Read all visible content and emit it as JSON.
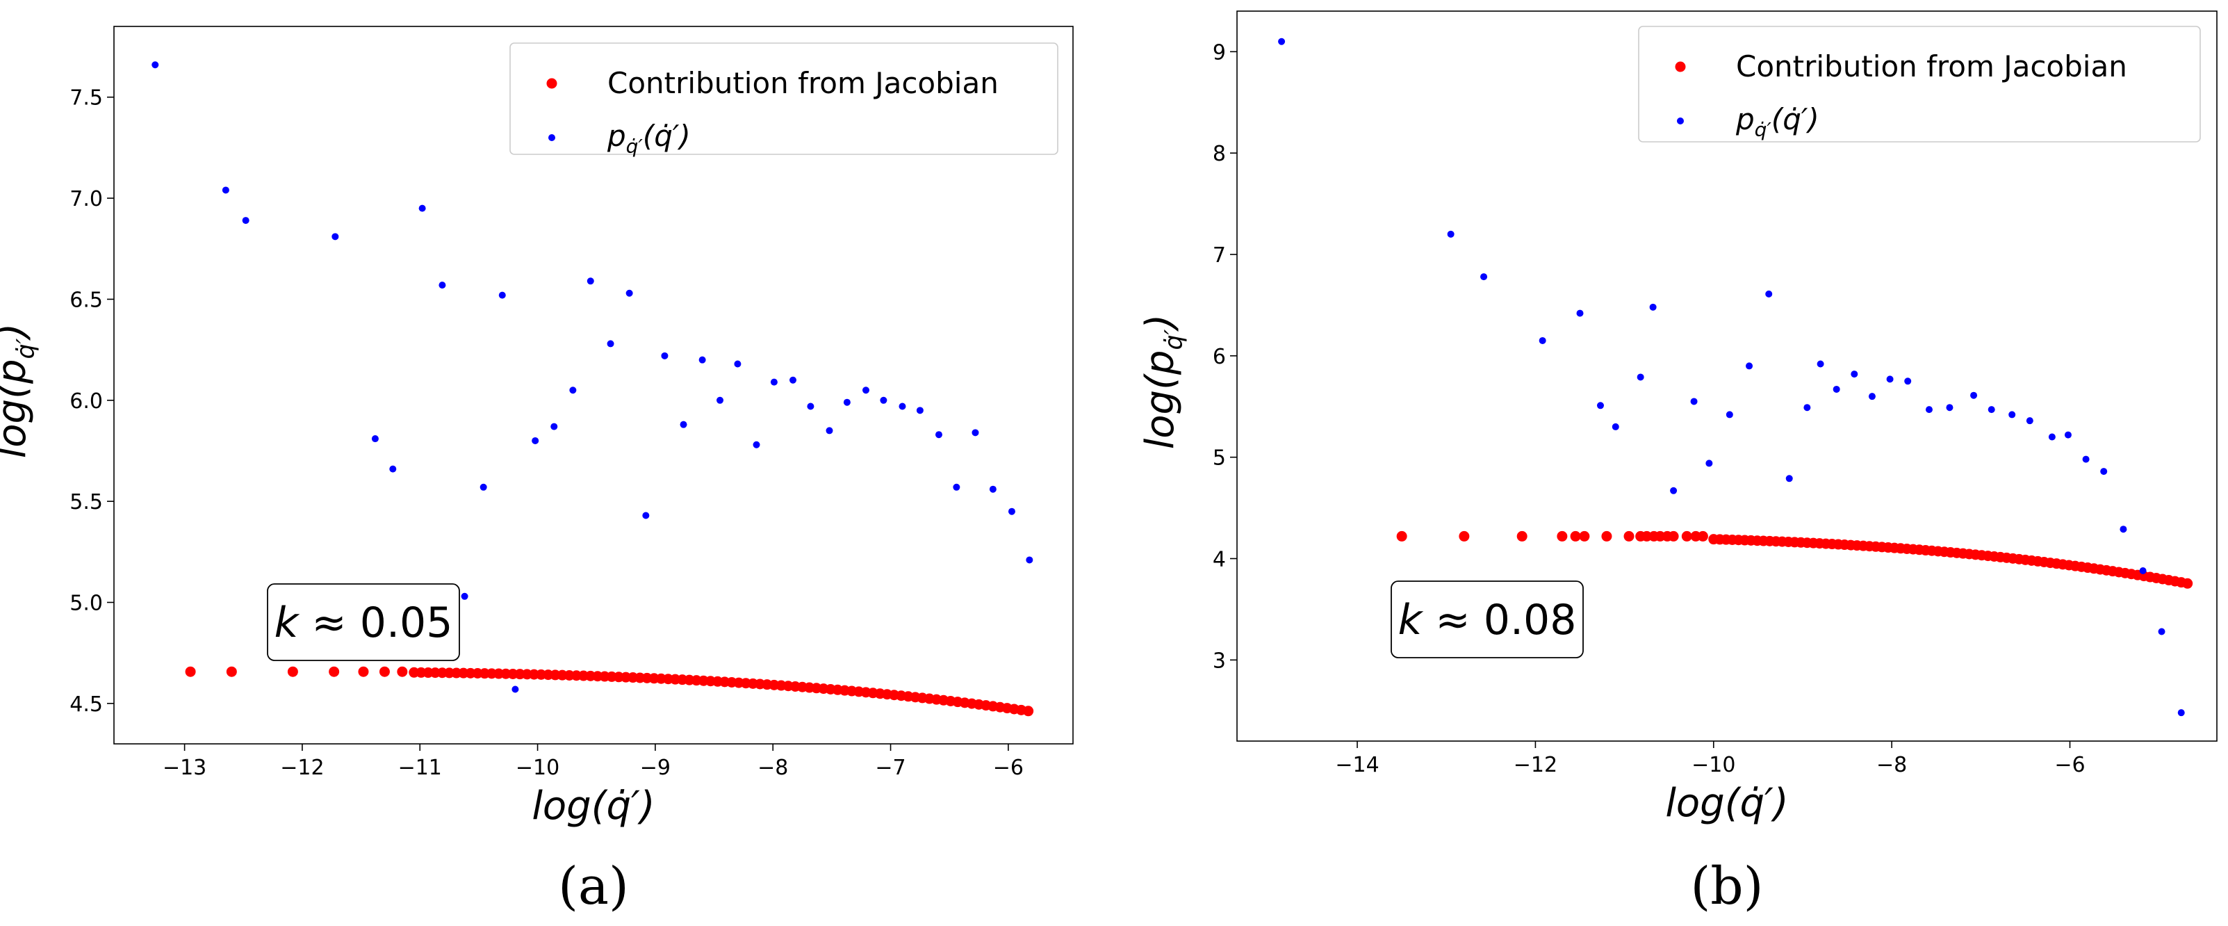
{
  "chart_data": [
    {
      "panel": "(a)",
      "type": "scatter",
      "xlabel": "log(q̇′)",
      "ylabel": "log(p_q̇′)",
      "xlim": [
        -13.6,
        -5.45
      ],
      "ylim": [
        4.3,
        7.85
      ],
      "xticks": [
        -13,
        -12,
        -11,
        -10,
        -9,
        -8,
        -7,
        -6
      ],
      "yticks": [
        4.5,
        5.0,
        5.5,
        6.0,
        6.5,
        7.0,
        7.5
      ],
      "annotation": "k ≈ 0.05",
      "legend": [
        "Contribution from Jacobian",
        "p_q̇′(q̇′)"
      ],
      "legend_loc": "upper right",
      "series": [
        {
          "name": "Contribution from Jacobian",
          "color": "#ff0000",
          "curve": {
            "a": 4.657,
            "x0": -12.95,
            "x_end": -5.8,
            "y_end": 4.46,
            "power": 3,
            "dense_from": -11.05,
            "dense_step": 0.06
          },
          "x": [
            -12.95,
            -12.6,
            -12.08,
            -11.73,
            -11.48,
            -11.3,
            -11.15
          ],
          "y": [
            4.657,
            4.657,
            4.657,
            4.657,
            4.657,
            4.657,
            4.657
          ]
        },
        {
          "name": "p_q̇′(q̇′)",
          "color": "#0000ff",
          "x": [
            -13.25,
            -12.65,
            -12.48,
            -11.72,
            -11.38,
            -11.23,
            -10.98,
            -10.81,
            -10.62,
            -10.46,
            -10.3,
            -10.19,
            -10.02,
            -9.86,
            -9.7,
            -9.55,
            -9.38,
            -9.22,
            -9.08,
            -8.92,
            -8.76,
            -8.6,
            -8.45,
            -8.3,
            -8.14,
            -7.99,
            -7.83,
            -7.68,
            -7.52,
            -7.37,
            -7.21,
            -7.06,
            -6.9,
            -6.75,
            -6.59,
            -6.44,
            -6.28,
            -6.13,
            -5.97,
            -5.82
          ],
          "y": [
            7.66,
            7.04,
            6.89,
            6.81,
            5.81,
            5.66,
            6.95,
            6.57,
            5.03,
            5.57,
            6.52,
            4.57,
            5.8,
            5.87,
            6.05,
            6.59,
            6.28,
            6.53,
            5.43,
            6.22,
            5.88,
            6.2,
            6.0,
            6.18,
            5.78,
            6.09,
            6.1,
            5.97,
            5.85,
            5.99,
            6.05,
            6.0,
            5.97,
            5.95,
            5.83,
            5.57,
            5.84,
            5.56,
            5.45,
            5.21
          ]
        }
      ]
    },
    {
      "panel": "(b)",
      "type": "scatter",
      "xlabel": "log(q̇′)",
      "ylabel": "log(p_q̇′)",
      "xlim": [
        -15.35,
        -4.35
      ],
      "ylim": [
        2.2,
        9.4
      ],
      "xticks": [
        -14,
        -12,
        -10,
        -8,
        -6
      ],
      "yticks": [
        3,
        4,
        5,
        6,
        7,
        8,
        9
      ],
      "annotation": "k ≈ 0.08",
      "legend": [
        "Contribution from Jacobian",
        "p_q̇′(q̇′)"
      ],
      "legend_loc": "upper right",
      "series": [
        {
          "name": "Contribution from Jacobian",
          "color": "#ff0000",
          "curve": {
            "a": 4.22,
            "x0": -13.5,
            "x_end": -4.65,
            "y_end": 3.75,
            "power": 3,
            "dense_from": -10.0,
            "dense_step": 0.07
          },
          "x": [
            -13.5,
            -12.8,
            -12.15,
            -11.7,
            -11.55,
            -11.45,
            -11.2,
            -10.95,
            -10.82,
            -10.75,
            -10.67,
            -10.6,
            -10.52,
            -10.45,
            -10.3,
            -10.2,
            -10.12
          ],
          "y": [
            4.22,
            4.22,
            4.22,
            4.22,
            4.22,
            4.22,
            4.22,
            4.22,
            4.22,
            4.22,
            4.22,
            4.22,
            4.22,
            4.22,
            4.22,
            4.22,
            4.22
          ]
        },
        {
          "name": "p_q̇′(q̇′)",
          "color": "#0000ff",
          "x": [
            -14.85,
            -12.95,
            -12.58,
            -11.92,
            -11.5,
            -11.27,
            -11.1,
            -10.82,
            -10.68,
            -10.45,
            -10.22,
            -10.05,
            -9.82,
            -9.6,
            -9.38,
            -9.15,
            -8.95,
            -8.8,
            -8.62,
            -8.42,
            -8.22,
            -8.02,
            -7.82,
            -7.58,
            -7.35,
            -7.08,
            -6.88,
            -6.65,
            -6.45,
            -6.2,
            -6.02,
            -5.82,
            -5.62,
            -5.4,
            -5.18,
            -4.97,
            -4.75
          ],
          "y": [
            9.1,
            7.2,
            6.78,
            6.15,
            6.42,
            5.51,
            5.3,
            5.79,
            6.48,
            4.67,
            5.55,
            4.94,
            5.42,
            5.9,
            6.61,
            4.79,
            5.49,
            5.92,
            5.67,
            5.82,
            5.6,
            5.77,
            5.75,
            5.47,
            5.49,
            5.61,
            5.47,
            5.42,
            5.36,
            5.2,
            5.22,
            4.98,
            4.86,
            4.29,
            3.88,
            3.28,
            2.48
          ]
        }
      ]
    }
  ]
}
